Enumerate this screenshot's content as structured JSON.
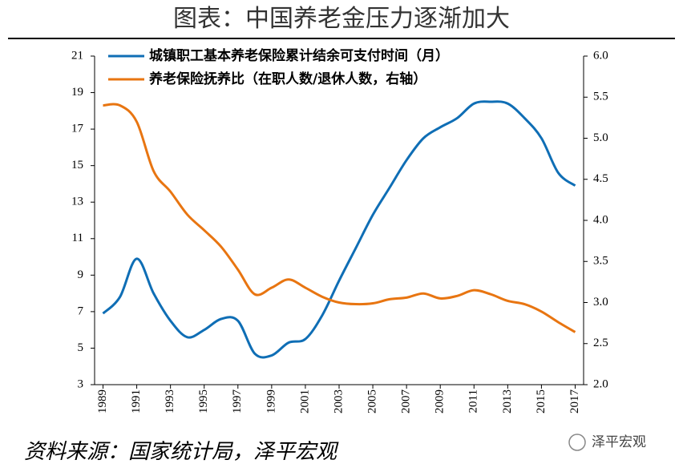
{
  "chart_data": {
    "type": "line",
    "title": "图表：中国养老金压力逐渐加大",
    "source": "资料来源：国家统计局，泽平宏观",
    "watermark": "泽平宏观",
    "x": [
      1989,
      1990,
      1991,
      1992,
      1993,
      1994,
      1995,
      1996,
      1997,
      1998,
      1999,
      2000,
      2001,
      2002,
      2003,
      2004,
      2005,
      2006,
      2007,
      2008,
      2009,
      2010,
      2011,
      2012,
      2013,
      2014,
      2015,
      2016,
      2017
    ],
    "xlim": [
      1988.5,
      2017.5
    ],
    "xticks": [
      1989,
      1991,
      1993,
      1995,
      1997,
      1999,
      2001,
      2003,
      2005,
      2007,
      2009,
      2011,
      2013,
      2015,
      2017
    ],
    "ylim": [
      3,
      21
    ],
    "yticks": [
      3,
      5,
      7,
      9,
      11,
      13,
      15,
      17,
      19,
      21
    ],
    "y2lim": [
      2,
      6
    ],
    "y2ticks": [
      {
        "value": 2,
        "label": "2.0"
      },
      2.5,
      {
        "value": 3,
        "label": "3.0"
      },
      3.5,
      {
        "value": 4,
        "label": "4.0"
      },
      4.5,
      {
        "value": 5,
        "label": "5.0"
      },
      5.5,
      {
        "value": 6,
        "label": "6.0"
      }
    ],
    "series": [
      {
        "name": "城镇职工基本养老保险累计结余可支付时间（月）",
        "color": "#0f6eb5",
        "values": [
          6.9,
          7.8,
          9.9,
          8.0,
          6.5,
          5.6,
          6.0,
          6.6,
          6.5,
          4.7,
          4.6,
          5.3,
          5.5,
          6.8,
          8.7,
          10.5,
          12.3,
          13.8,
          15.3,
          16.5,
          17.1,
          17.6,
          18.4,
          18.5,
          18.4,
          17.6,
          16.5,
          14.6,
          13.9
        ]
      },
      {
        "name": "养老保险抚养比（在职人数/退休人数，右轴）",
        "color": "#e87511",
        "axis": "y2",
        "values": [
          5.4,
          5.4,
          5.2,
          4.6,
          4.35,
          4.07,
          3.88,
          3.68,
          3.4,
          3.1,
          3.18,
          3.28,
          3.18,
          3.07,
          3.0,
          2.98,
          2.99,
          3.04,
          3.06,
          3.11,
          3.05,
          3.08,
          3.15,
          3.1,
          3.02,
          2.98,
          2.89,
          2.76,
          2.64
        ]
      }
    ]
  }
}
